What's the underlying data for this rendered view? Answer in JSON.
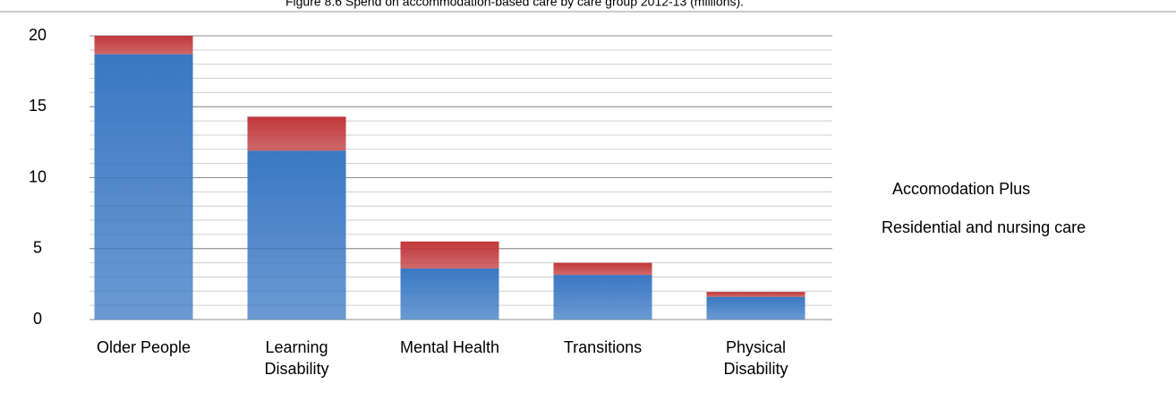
{
  "chart_data": {
    "type": "stacked_bar",
    "title": "Figure 8.6 Spend on accommodation-based care by care group 2012-13 (millions).",
    "categories": [
      "Older People",
      "Learning Disability",
      "Mental Health",
      "Transitions",
      "Physical Disability"
    ],
    "series": [
      {
        "name": "Residential and nursing care",
        "color": "#3a78c3",
        "values": [
          18.7,
          11.9,
          3.6,
          3.15,
          1.6
        ]
      },
      {
        "name": "Accomodation Plus",
        "color": "#c0373a",
        "values": [
          1.3,
          2.4,
          1.9,
          0.85,
          0.35
        ]
      }
    ],
    "ylim": [
      0,
      20
    ],
    "yticks": [
      0,
      5,
      10,
      15,
      20
    ],
    "grid": true
  }
}
